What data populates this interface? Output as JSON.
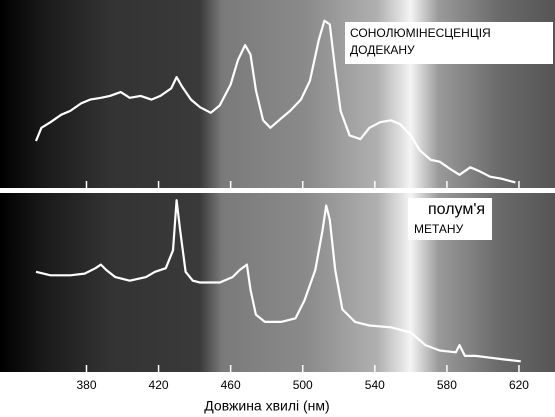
{
  "chart_data": [
    {
      "type": "line",
      "annotation": [
        "СОНОЛЮМІНЕСЦЕНЦІЯ",
        "ДОДЕКАНУ"
      ],
      "xlim": [
        332,
        640
      ],
      "ylim": [
        0,
        100
      ],
      "x": [
        352,
        355,
        360,
        366,
        371,
        377,
        382,
        388,
        393,
        399,
        404,
        410,
        416,
        421,
        427,
        430,
        433,
        438,
        443,
        449,
        454,
        460,
        464,
        468,
        471,
        474,
        478,
        482,
        488,
        493,
        499,
        504,
        509,
        512,
        515,
        518,
        521,
        526,
        532,
        537,
        543,
        549,
        554,
        560,
        565,
        571,
        576,
        582,
        587,
        593,
        598,
        604,
        610,
        618
      ],
      "series": [
        {
          "color": "#ffffff",
          "values": [
            25,
            32,
            35,
            39,
            41,
            45,
            47,
            48,
            49,
            51,
            48,
            49,
            47,
            49,
            53,
            59,
            54,
            47,
            43,
            40,
            44,
            55,
            68,
            76,
            71,
            52,
            36,
            32,
            37,
            41,
            47,
            57,
            79,
            89,
            87,
            63,
            41,
            28,
            26,
            32,
            35,
            36,
            34,
            28,
            20,
            15,
            14,
            10,
            7,
            11,
            9,
            6,
            5,
            3
          ]
        }
      ]
    },
    {
      "type": "line",
      "annotation": [
        "полум'я",
        "МЕТАНУ"
      ],
      "xlabel": "Довжина хвилі (нм)",
      "xlim": [
        332,
        640
      ],
      "ylim": [
        0,
        100
      ],
      "xticks": [
        380,
        420,
        460,
        500,
        540,
        580,
        620
      ],
      "x": [
        352,
        360,
        371,
        379,
        385,
        388,
        391,
        396,
        404,
        413,
        418,
        424,
        428,
        430,
        432,
        435,
        439,
        443,
        449,
        454,
        461,
        465,
        469,
        471,
        474,
        479,
        488,
        496,
        501,
        507,
        511,
        513,
        515,
        518,
        522,
        529,
        537,
        549,
        560,
        568,
        576,
        585,
        587,
        590,
        596,
        604,
        612,
        621
      ],
      "series": [
        {
          "color": "#ffffff",
          "values": [
            56,
            54,
            54,
            55,
            58,
            60,
            57,
            53,
            51,
            53,
            56,
            58,
            68,
            96,
            79,
            56,
            51,
            50,
            50,
            50,
            53,
            57,
            60,
            46,
            32,
            28,
            28,
            30,
            40,
            57,
            79,
            93,
            85,
            57,
            35,
            28,
            26,
            25,
            22,
            15,
            12,
            11,
            15,
            9,
            9,
            8,
            7,
            6
          ]
        }
      ]
    }
  ]
}
